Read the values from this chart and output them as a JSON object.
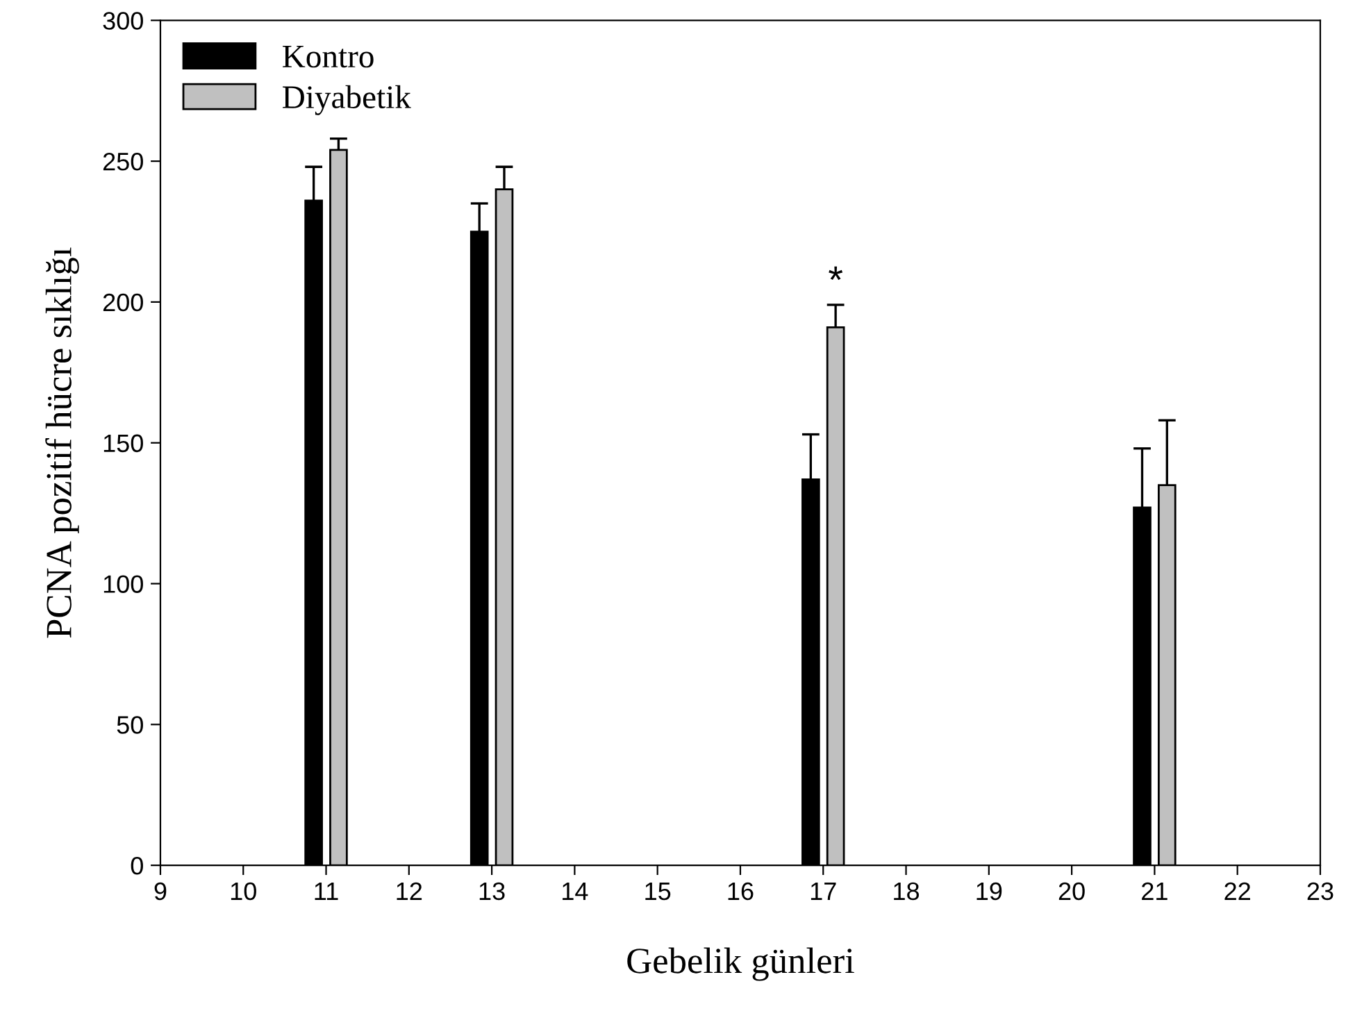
{
  "chart_data": {
    "type": "bar",
    "xlabel": "Gebelik günleri",
    "ylabel": "PCNA pozitif hücre sıklığı",
    "x": [
      11,
      13,
      17,
      21
    ],
    "series": [
      {
        "name": "Kontro",
        "color": "#000000",
        "values": [
          236,
          225,
          137,
          127
        ],
        "errors": [
          [
            236,
            248
          ],
          [
            225,
            235
          ],
          [
            137,
            153
          ],
          [
            127,
            148
          ]
        ]
      },
      {
        "name": "Diyabetik",
        "color": "#c0c0c0",
        "values": [
          254,
          240,
          191,
          135
        ],
        "errors": [
          [
            254,
            258
          ],
          [
            240,
            248
          ],
          [
            191,
            199
          ],
          [
            135,
            158
          ]
        ]
      }
    ],
    "xlim": [
      9,
      23
    ],
    "xticks": [
      9,
      10,
      11,
      12,
      13,
      14,
      15,
      16,
      17,
      18,
      19,
      20,
      21,
      22,
      23
    ],
    "ylim": [
      0,
      300
    ],
    "yticks": [
      0,
      50,
      100,
      150,
      200,
      250,
      300
    ],
    "annotations": [
      {
        "text": "*",
        "x": 17.15,
        "y": 199
      }
    ],
    "legend": "top left",
    "grid": false
  }
}
